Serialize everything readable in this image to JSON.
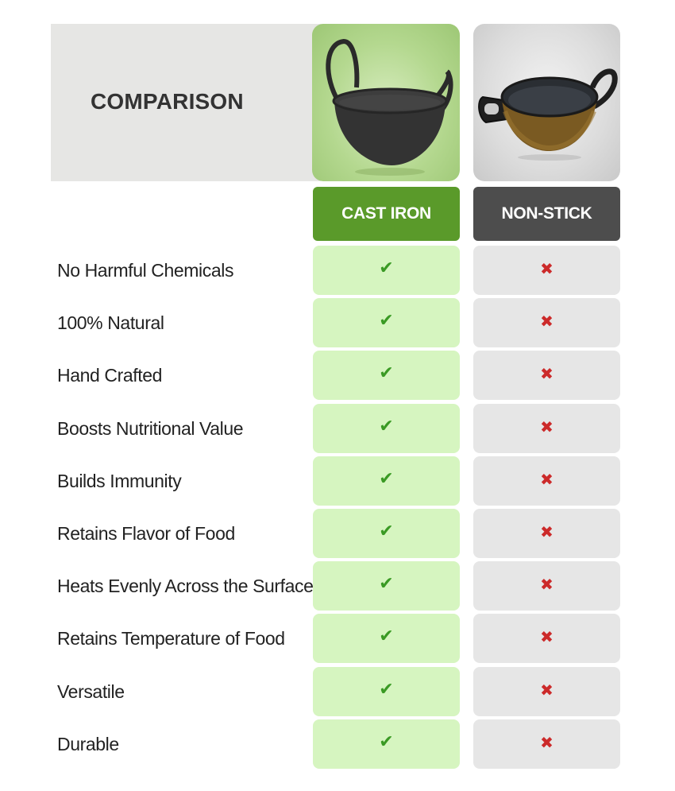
{
  "header": {
    "title": "COMPARISON"
  },
  "columns": {
    "cast_iron": {
      "label": "CAST IRON",
      "image": "cast-iron-kadai-image",
      "accent": "#5a9a2a",
      "cell_color": "#d6f5c0"
    },
    "non_stick": {
      "label": "NON-STICK",
      "image": "non-stick-kadai-image",
      "accent": "#4d4d4d",
      "cell_color": "#e6e6e6"
    }
  },
  "icons": {
    "yes": "check-icon",
    "no": "cross-icon",
    "yes_glyph": "✔",
    "no_glyph": "✖",
    "yes_color": "#3a9a24",
    "no_color": "#cc2a2a"
  },
  "rows": [
    {
      "label": "No Harmful Chemicals",
      "cast_iron": true,
      "non_stick": false
    },
    {
      "label": "100% Natural",
      "cast_iron": true,
      "non_stick": false
    },
    {
      "label": "Hand Crafted",
      "cast_iron": true,
      "non_stick": false
    },
    {
      "label": "Boosts Nutritional Value",
      "cast_iron": true,
      "non_stick": false
    },
    {
      "label": "Builds Immunity",
      "cast_iron": true,
      "non_stick": false
    },
    {
      "label": "Retains Flavor of Food",
      "cast_iron": true,
      "non_stick": false
    },
    {
      "label": "Heats Evenly Across the Surface",
      "cast_iron": true,
      "non_stick": false
    },
    {
      "label": "Retains Temperature of Food",
      "cast_iron": true,
      "non_stick": false
    },
    {
      "label": "Versatile",
      "cast_iron": true,
      "non_stick": false
    },
    {
      "label": "Durable",
      "cast_iron": true,
      "non_stick": false
    }
  ]
}
